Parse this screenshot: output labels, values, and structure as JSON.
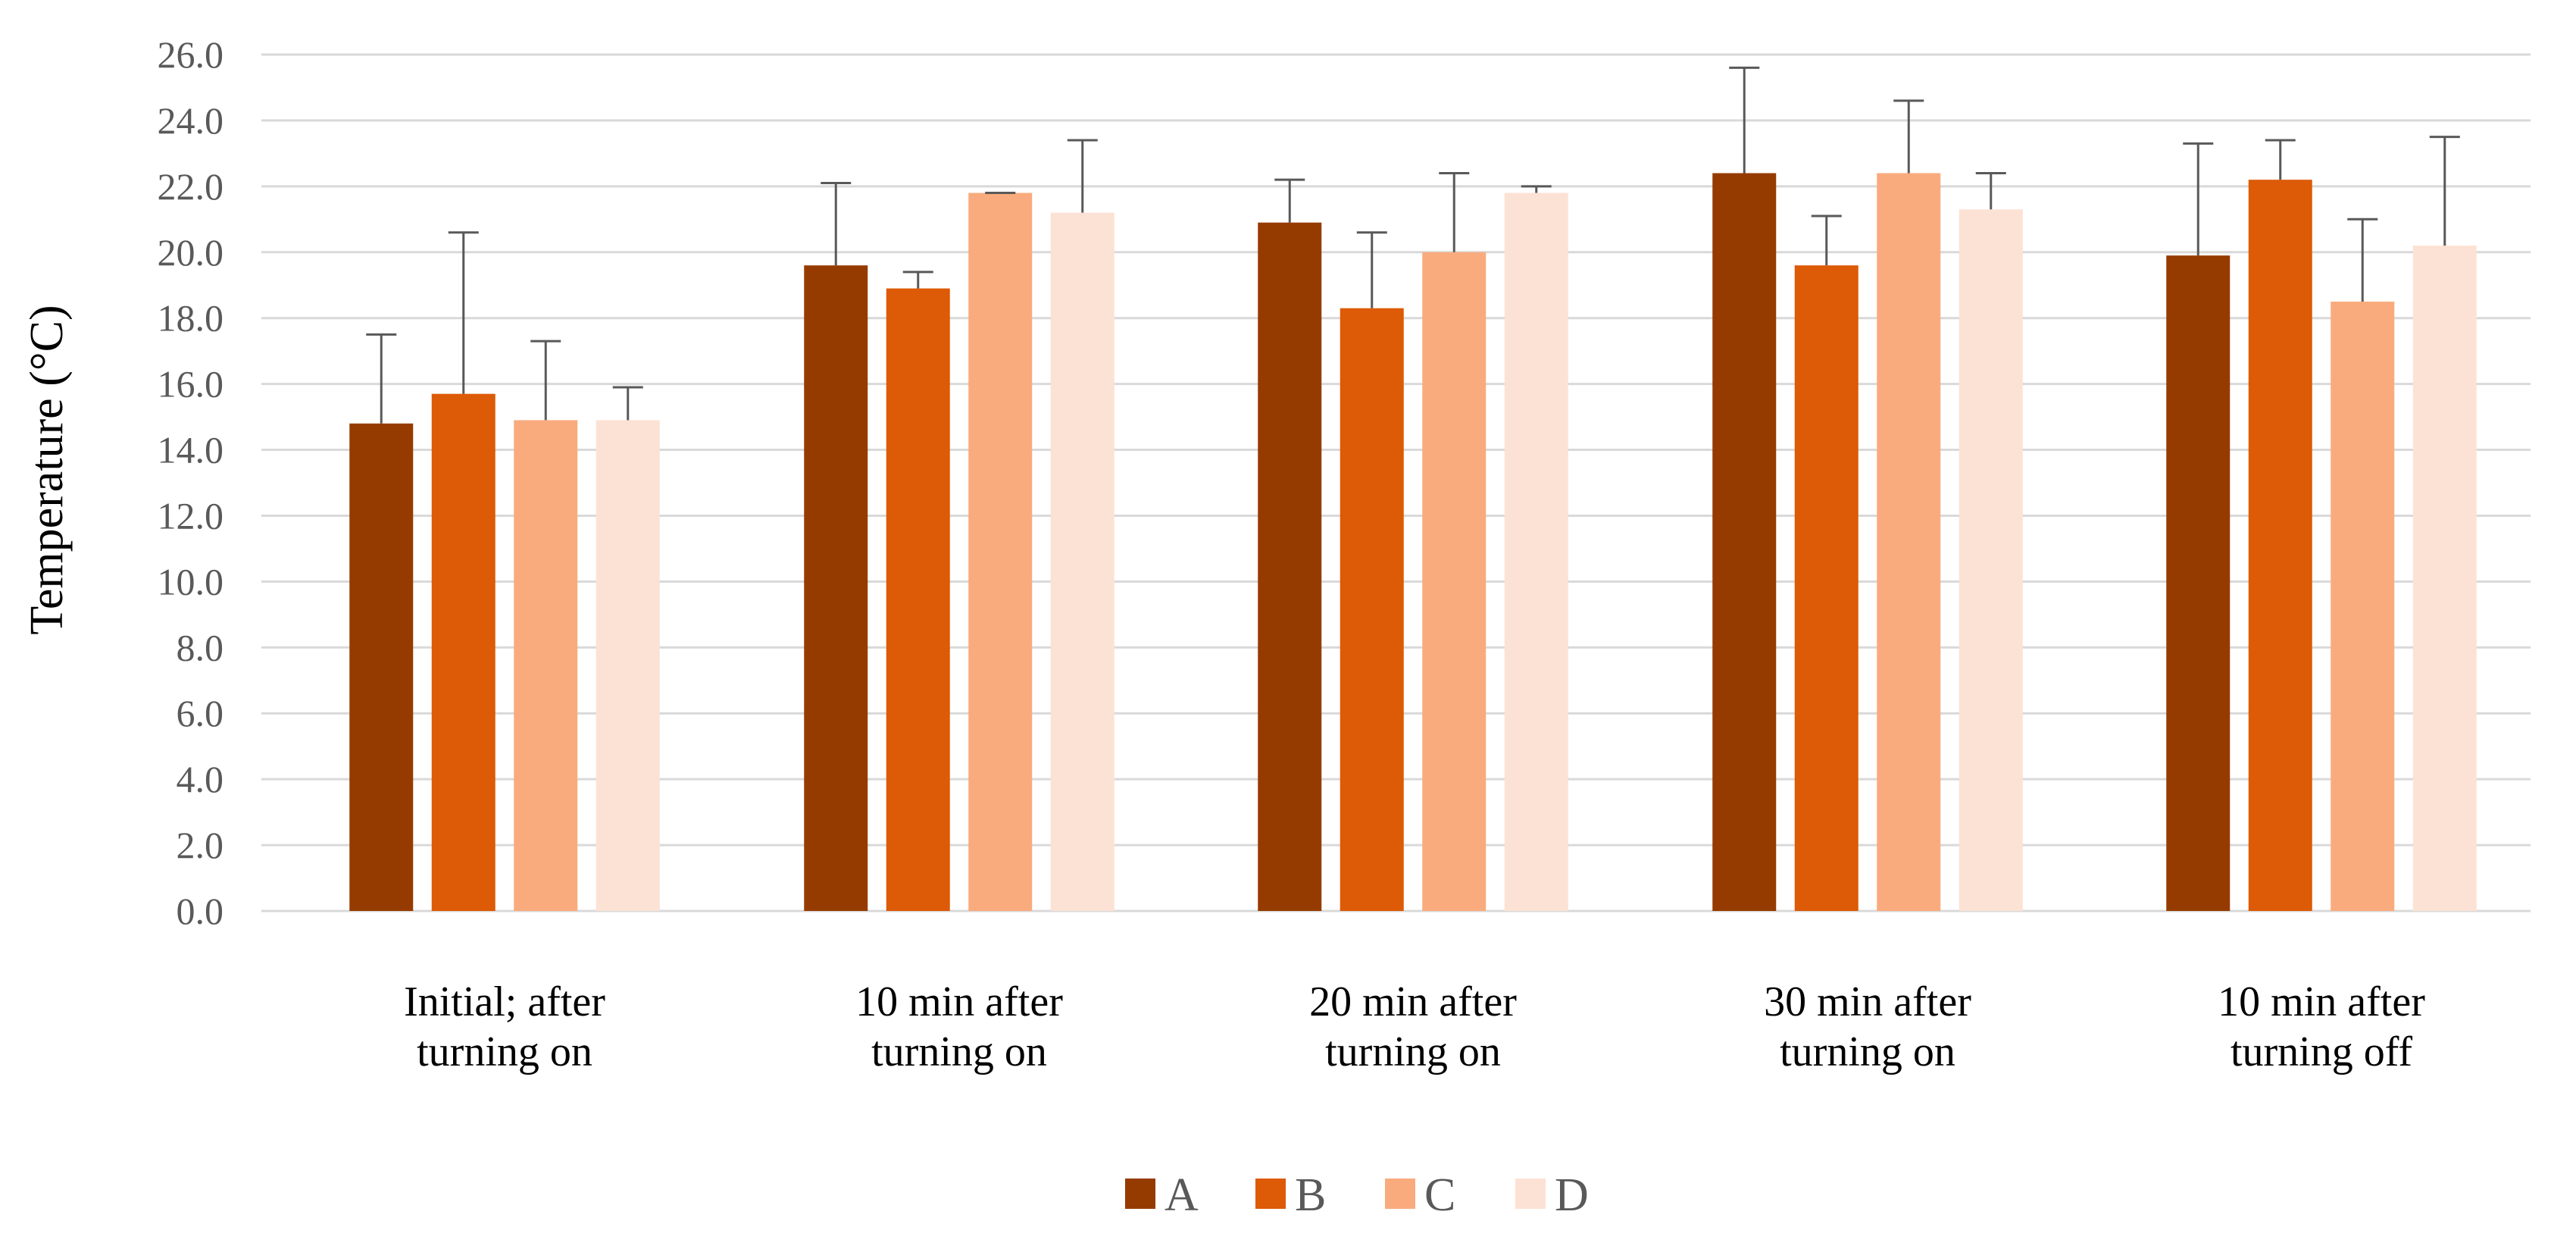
{
  "chart_data": {
    "type": "bar",
    "title": "",
    "xlabel": "",
    "ylabel": "Temperature (°C)",
    "ylim": [
      0,
      26
    ],
    "yticks": [
      "0.0",
      "2.0",
      "4.0",
      "6.0",
      "8.0",
      "10.0",
      "12.0",
      "14.0",
      "16.0",
      "18.0",
      "20.0",
      "22.0",
      "24.0",
      "26.0"
    ],
    "grid": true,
    "legend_position": "bottom",
    "categories": [
      [
        "Initial; after",
        "turning on"
      ],
      [
        "10 min after",
        "turning on"
      ],
      [
        "20 min after",
        "turning on"
      ],
      [
        "30 min after",
        "turning on"
      ],
      [
        "10 min after",
        "turning off"
      ]
    ],
    "series": [
      {
        "name": "A",
        "color": "#963b00",
        "values": [
          14.8,
          19.6,
          20.9,
          22.4,
          19.9
        ],
        "error_upper": [
          17.5,
          22.1,
          22.2,
          25.6,
          23.3
        ]
      },
      {
        "name": "B",
        "color": "#dd5a06",
        "values": [
          15.7,
          18.9,
          18.3,
          19.6,
          22.2
        ],
        "error_upper": [
          20.6,
          19.4,
          20.6,
          21.1,
          23.4
        ]
      },
      {
        "name": "C",
        "color": "#f9ab7d",
        "values": [
          14.9,
          21.8,
          20.0,
          22.4,
          18.5
        ],
        "error_upper": [
          17.3,
          21.8,
          22.4,
          24.6,
          21.0
        ]
      },
      {
        "name": "D",
        "color": "#fce2d4",
        "values": [
          14.9,
          21.2,
          21.8,
          21.3,
          20.2
        ],
        "error_upper": [
          15.9,
          23.4,
          22.0,
          22.4,
          23.5
        ]
      }
    ]
  }
}
